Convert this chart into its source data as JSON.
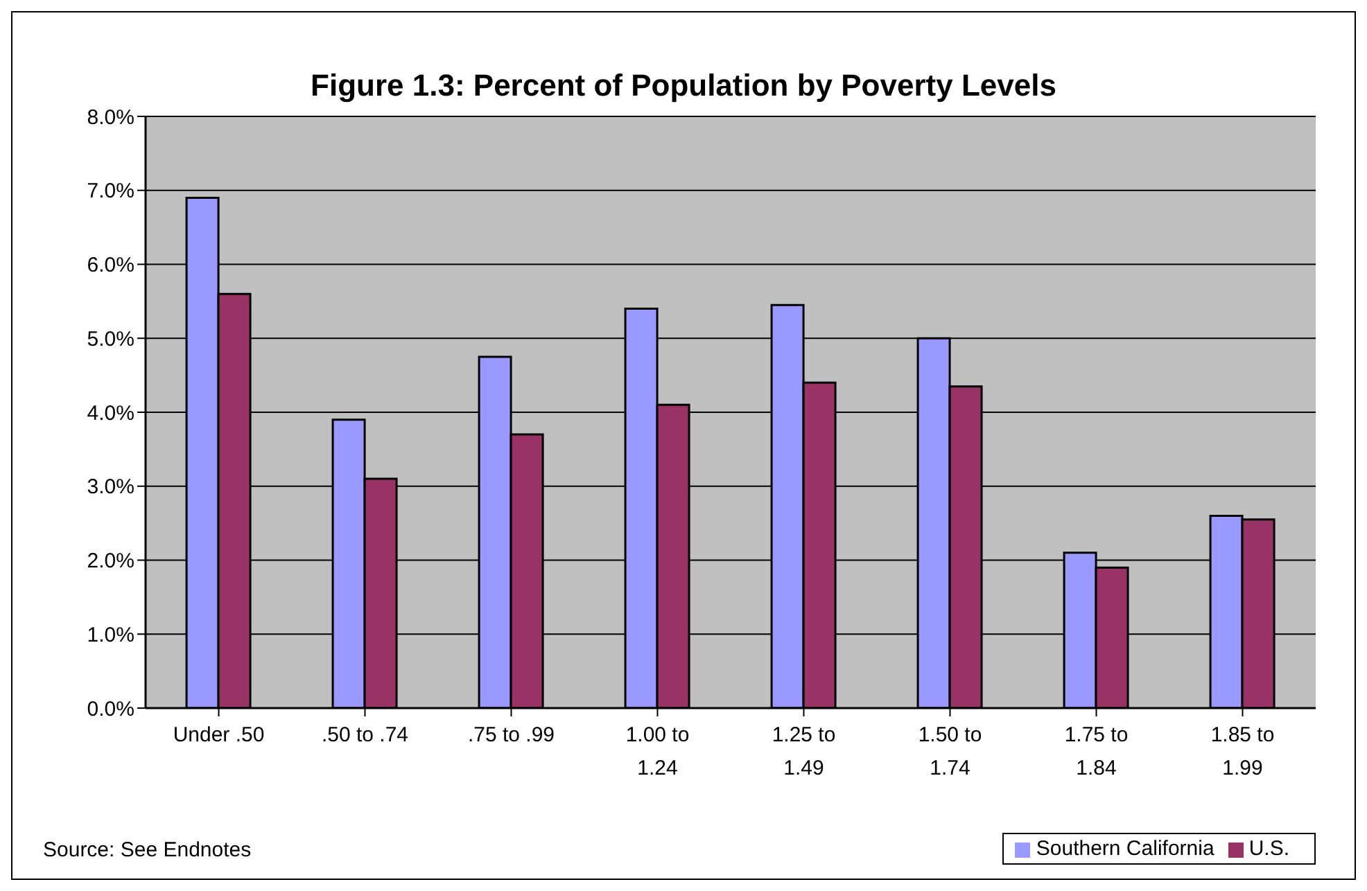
{
  "chart_data": {
    "type": "bar",
    "title": "Figure 1.3: Percent of Population by Poverty Levels",
    "categories": [
      "Under .50",
      ".50 to .74",
      ".75 to .99",
      "1.00 to 1.24",
      "1.25 to 1.49",
      "1.50 to 1.74",
      "1.75 to 1.84",
      "1.85 to 1.99"
    ],
    "series": [
      {
        "name": "Southern California",
        "color": "#9999ff",
        "values": [
          6.9,
          3.9,
          4.75,
          5.4,
          5.45,
          5.0,
          2.1,
          2.6
        ]
      },
      {
        "name": "U.S.",
        "color": "#993366",
        "values": [
          5.6,
          3.1,
          3.7,
          4.1,
          4.4,
          4.35,
          1.9,
          2.55
        ]
      }
    ],
    "ylim": [
      0,
      8
    ],
    "yticks": [
      {
        "value": 0,
        "label": "0.0%"
      },
      {
        "value": 1,
        "label": "1.0%"
      },
      {
        "value": 2,
        "label": "2.0%"
      },
      {
        "value": 3,
        "label": "3.0%"
      },
      {
        "value": 4,
        "label": "4.0%"
      },
      {
        "value": 5,
        "label": "5.0%"
      },
      {
        "value": 6,
        "label": "6.0%"
      },
      {
        "value": 7,
        "label": "7.0%"
      },
      {
        "value": 8,
        "label": "8.0%"
      }
    ],
    "grid": "y",
    "legend": "bottom right",
    "annotations": [
      "Source: See Endnotes"
    ]
  }
}
